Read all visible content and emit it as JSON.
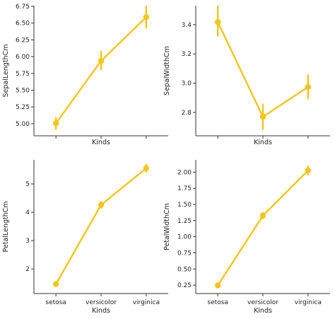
{
  "chart_data": [
    {
      "type": "line",
      "categories": [
        "setosa",
        "versicolor",
        "virginica"
      ],
      "values": [
        5.006,
        5.936,
        6.588
      ],
      "error_bars": [
        [
          4.91,
          5.1
        ],
        [
          5.8,
          6.09
        ],
        [
          6.42,
          6.76
        ]
      ],
      "xlabel": "Kinds",
      "ylabel": "SepalLengthCm",
      "ylim": [
        4.82,
        6.76
      ],
      "yticks": [
        "5.00",
        "5.25",
        "5.50",
        "5.75",
        "6.00",
        "6.25",
        "6.50",
        "6.75"
      ],
      "show_x_tick_labels": false,
      "grid": false,
      "color": "#f5c518"
    },
    {
      "type": "line",
      "categories": [
        "setosa",
        "versicolor",
        "virginica"
      ],
      "values": [
        3.418,
        2.77,
        2.974
      ],
      "error_bars": [
        [
          3.32,
          3.53
        ],
        [
          2.68,
          2.86
        ],
        [
          2.89,
          3.06
        ]
      ],
      "xlabel": "Kinds",
      "ylabel": "SepalWidthCm",
      "ylim": [
        2.64,
        3.53
      ],
      "yticks": [
        "2.8",
        "3.0",
        "3.2",
        "3.4"
      ],
      "show_x_tick_labels": false,
      "grid": false,
      "color": "#f5c518"
    },
    {
      "type": "line",
      "categories": [
        "setosa",
        "versicolor",
        "virginica"
      ],
      "values": [
        1.464,
        4.26,
        5.552
      ],
      "error_bars": [
        [
          1.42,
          1.51
        ],
        [
          4.13,
          4.39
        ],
        [
          5.4,
          5.7
        ]
      ],
      "xlabel": "Kinds",
      "ylabel": "PetalLengthCm",
      "ylim": [
        1.13,
        5.85
      ],
      "yticks": [
        "2",
        "3",
        "4",
        "5"
      ],
      "show_x_tick_labels": true,
      "grid": false,
      "color": "#f5c518"
    },
    {
      "type": "line",
      "categories": [
        "setosa",
        "versicolor",
        "virginica"
      ],
      "values": [
        0.246,
        1.326,
        2.026
      ],
      "error_bars": [
        [
          0.23,
          0.27
        ],
        [
          1.27,
          1.38
        ],
        [
          1.95,
          2.1
        ]
      ],
      "xlabel": "Kinds",
      "ylabel": "PetalWidthCm",
      "ylim": [
        0.12,
        2.19
      ],
      "yticks": [
        "0.25",
        "0.50",
        "0.75",
        "1.00",
        "1.25",
        "1.50",
        "1.75",
        "2.00"
      ],
      "show_x_tick_labels": true,
      "grid": false,
      "color": "#f5c518"
    }
  ]
}
